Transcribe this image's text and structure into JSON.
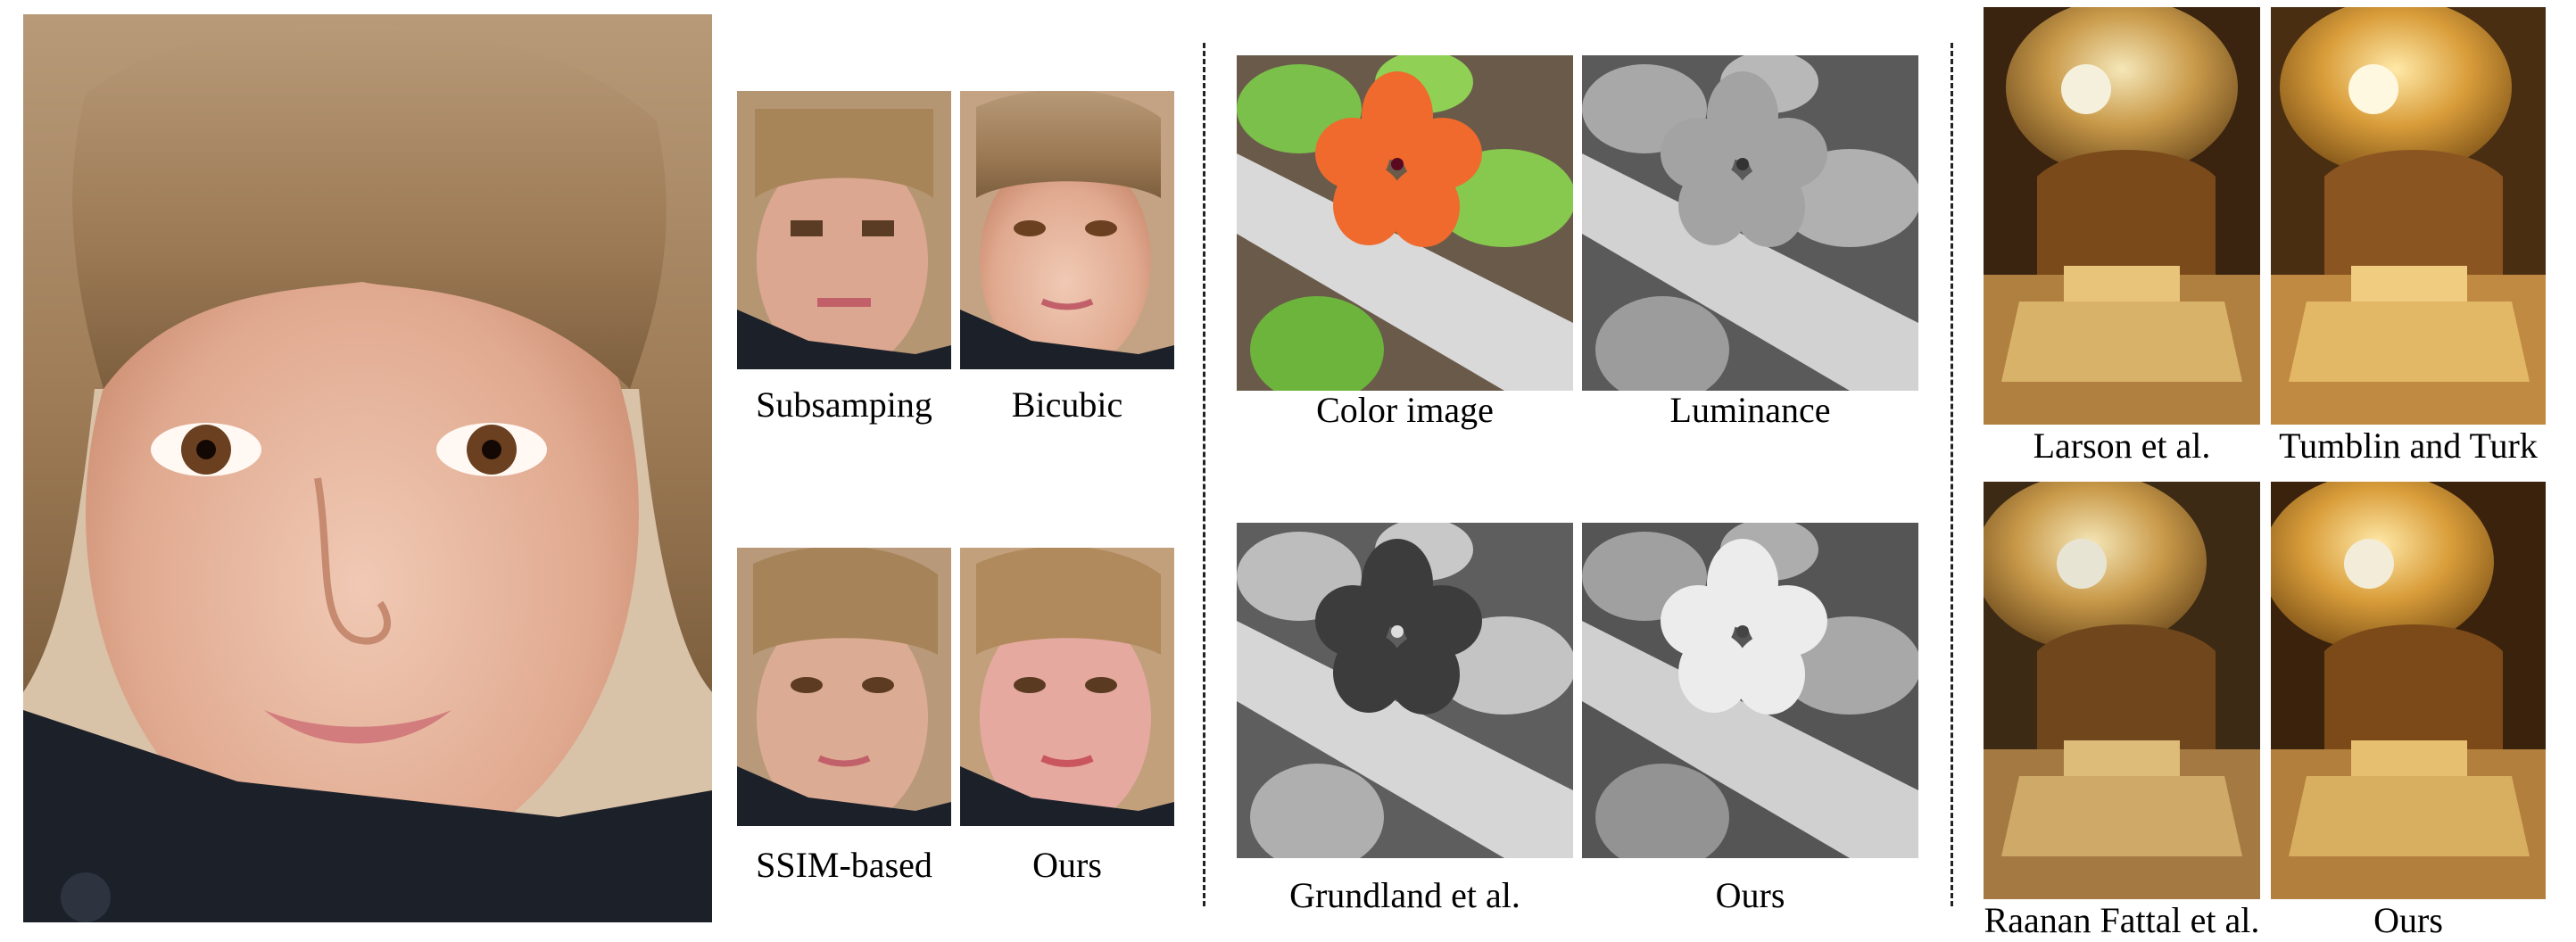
{
  "figure": {
    "panel_super_resolution": {
      "captions": {
        "subsampling": "Subsamping",
        "bicubic": "Bicubic",
        "ssim_based": "SSIM-based",
        "ours": "Ours"
      }
    },
    "panel_decolorization": {
      "captions": {
        "color_image": "Color image",
        "luminance": "Luminance",
        "grundland": "Grundland et al.",
        "ours": "Ours"
      }
    },
    "panel_tone_mapping": {
      "captions": {
        "larson": "Larson et al.",
        "tumblin_turk": "Tumblin and Turk",
        "raanan_fattal": "Raanan Fattal et al.",
        "ours": "Ours"
      }
    }
  }
}
